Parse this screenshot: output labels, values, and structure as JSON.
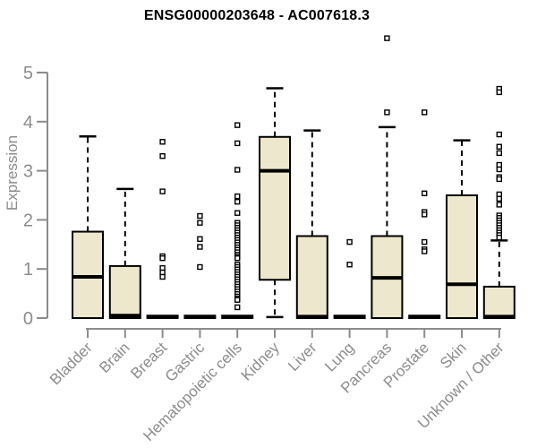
{
  "chart_data": {
    "type": "boxplot",
    "title": "ENSG00000203648 - AC007618.3",
    "ylabel": "Expression",
    "xlabel": "",
    "ylim": [
      0,
      5.8
    ],
    "yticks": [
      0,
      1,
      2,
      3,
      4,
      5
    ],
    "grid": false,
    "legend": "none",
    "box_fill": "#EDE8CD",
    "axis_color": "#8C8C8C",
    "line_color": "#000000",
    "outlier_fill": "#FFFFFF",
    "categories": [
      "Bladder",
      "Brain",
      "Breast",
      "Gastric",
      "Hematopoietic cells",
      "Kidney",
      "Liver",
      "Lung",
      "Pancreas",
      "Prostate",
      "Skin",
      "Unknown / Other"
    ],
    "boxes": [
      {
        "label": "Bladder",
        "q1": 0,
        "median": 0.84,
        "q3": 1.76,
        "whisker_low": 0,
        "whisker_high": 3.7,
        "outliers": []
      },
      {
        "label": "Brain",
        "q1": 0,
        "median": 0.05,
        "q3": 1.06,
        "whisker_low": 0,
        "whisker_high": 2.63,
        "outliers": []
      },
      {
        "label": "Breast",
        "q1": 0,
        "median": 0.02,
        "q3": 0.05,
        "whisker_low": 0,
        "whisker_high": 0.05,
        "outliers": [
          3.59,
          3.3,
          2.58,
          1.26,
          1.22,
          1.02,
          0.93,
          0.84
        ]
      },
      {
        "label": "Gastric",
        "q1": 0,
        "median": 0.02,
        "q3": 0.05,
        "whisker_low": 0,
        "whisker_high": 0.05,
        "outliers": [
          2.08,
          1.94,
          1.61,
          1.45,
          1.04
        ]
      },
      {
        "label": "Hematopoietic cells",
        "q1": 0,
        "median": 0.02,
        "q3": 0.05,
        "whisker_low": 0,
        "whisker_high": 0.05,
        "outliers": [
          3.93,
          3.56,
          3.02,
          2.48,
          2.37,
          2.14,
          1.94,
          1.89,
          1.84,
          1.79,
          1.74,
          1.69,
          1.64,
          1.59,
          1.54,
          1.49,
          1.44,
          1.39,
          1.34,
          1.29,
          1.25,
          1.22,
          1.09,
          1.04,
          0.99,
          0.94,
          0.89,
          0.84,
          0.79,
          0.74,
          0.69,
          0.64,
          0.59,
          0.54,
          0.49,
          0.44,
          0.4,
          0.37,
          0.22
        ]
      },
      {
        "label": "Kidney",
        "q1": 0.78,
        "median": 3.0,
        "q3": 3.69,
        "whisker_low": 0.02,
        "whisker_high": 4.68,
        "outliers": []
      },
      {
        "label": "Liver",
        "q1": 0,
        "median": 0.03,
        "q3": 1.67,
        "whisker_low": 0,
        "whisker_high": 3.82,
        "outliers": []
      },
      {
        "label": "Lung",
        "q1": 0,
        "median": 0.02,
        "q3": 0.05,
        "whisker_low": 0,
        "whisker_high": 0.05,
        "outliers": [
          1.55,
          1.09
        ]
      },
      {
        "label": "Pancreas",
        "q1": 0,
        "median": 0.82,
        "q3": 1.67,
        "whisker_low": 0,
        "whisker_high": 3.89,
        "outliers": [
          5.7,
          4.19
        ]
      },
      {
        "label": "Prostate",
        "q1": 0,
        "median": 0.02,
        "q3": 0.05,
        "whisker_low": 0,
        "whisker_high": 0.05,
        "outliers": [
          4.19,
          2.54,
          2.16,
          2.11,
          1.55,
          1.4,
          1.36
        ]
      },
      {
        "label": "Skin",
        "q1": 0,
        "median": 0.69,
        "q3": 2.5,
        "whisker_low": 0,
        "whisker_high": 3.62,
        "outliers": []
      },
      {
        "label": "Unknown / Other",
        "q1": 0,
        "median": 0.03,
        "q3": 0.64,
        "whisker_low": 0,
        "whisker_high": 1.58,
        "outliers": [
          4.67,
          4.6,
          3.74,
          3.49,
          3.36,
          3.12,
          3.03,
          2.87,
          2.83,
          2.52,
          2.43,
          2.31,
          2.09,
          2.04,
          1.99,
          1.94,
          1.89,
          1.84,
          1.79,
          1.74,
          1.69,
          1.64
        ]
      }
    ]
  }
}
